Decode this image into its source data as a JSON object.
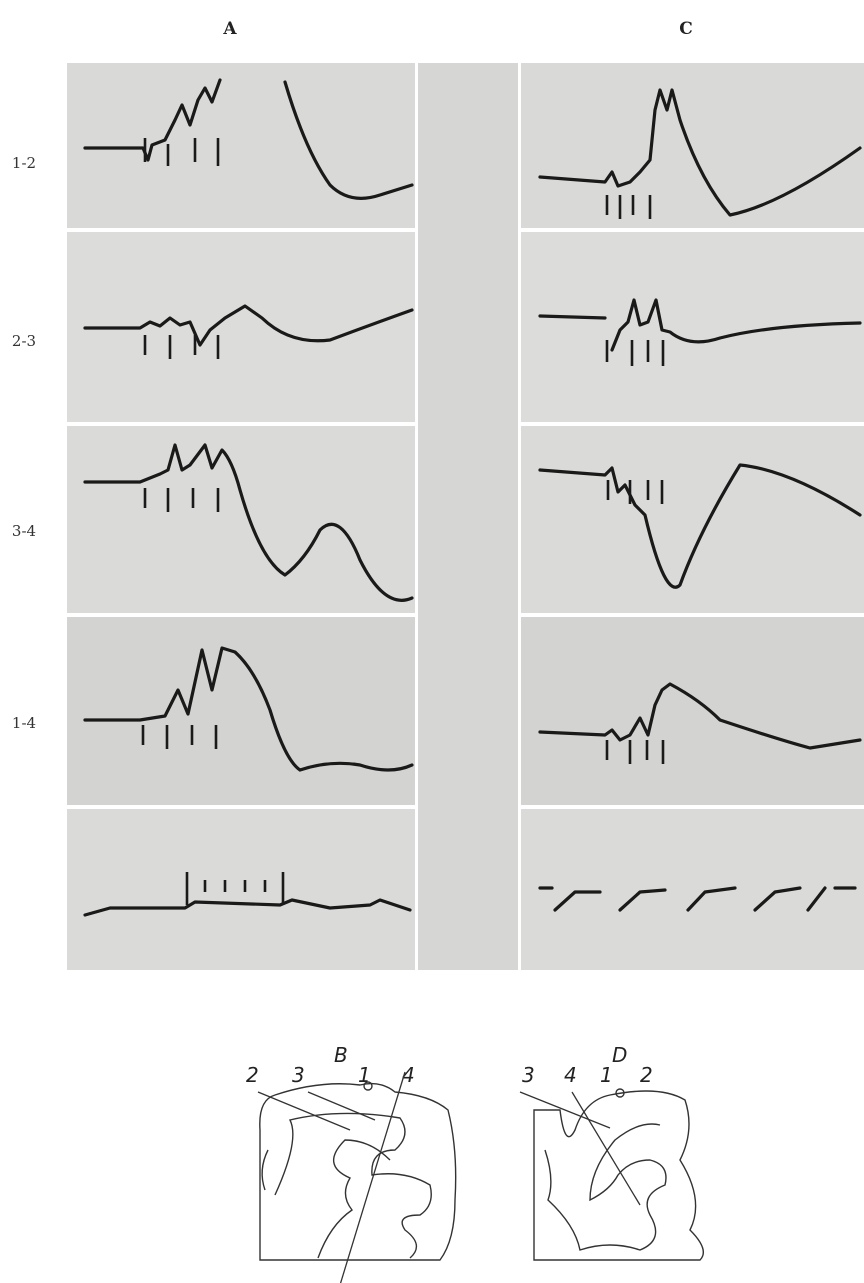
{
  "panels": {
    "column_labels": [
      "A",
      "C"
    ],
    "row_labels": [
      "1-2",
      "2-3",
      "3-4",
      "1-4"
    ]
  },
  "diagrams": [
    {
      "label": "B",
      "electrodes": [
        "2",
        "3",
        "1",
        "4"
      ]
    },
    {
      "label": "D",
      "electrodes": [
        "3",
        "4",
        "1",
        "2"
      ]
    }
  ]
}
